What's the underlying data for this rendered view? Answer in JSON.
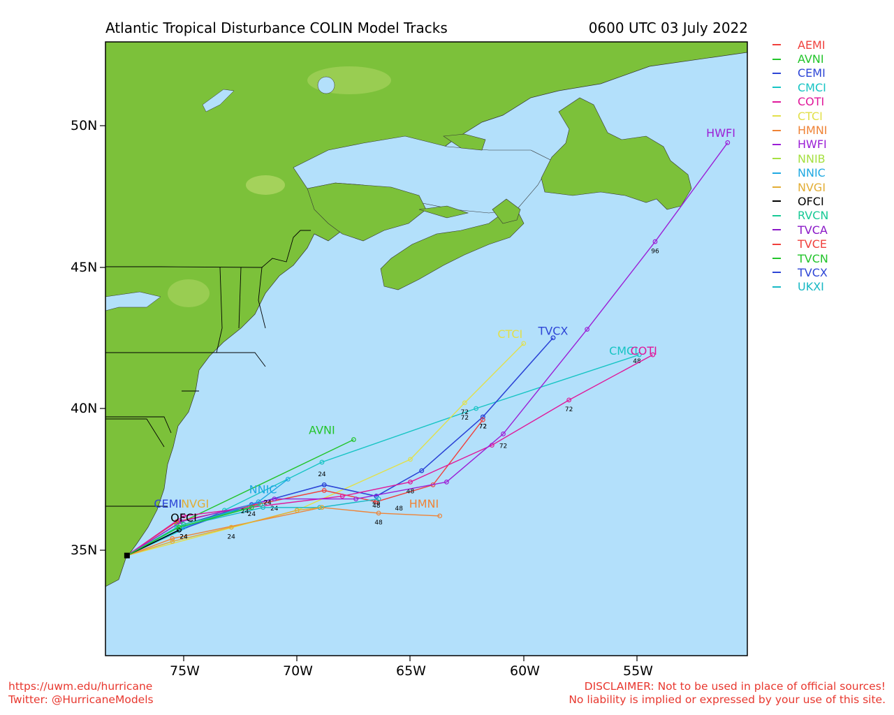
{
  "header": {
    "title": "Atlantic Tropical Disturbance COLIN Model Tracks",
    "timestamp": "0600 UTC 03 July 2022"
  },
  "axes": {
    "lon_labels": [
      "75W",
      "70W",
      "65W",
      "60W",
      "55W"
    ],
    "lat_labels": [
      "50N",
      "45N",
      "40N",
      "35N"
    ]
  },
  "colors": {
    "ocean": "#b3e0fb",
    "land": "#7cc13a",
    "land_light": "#b5d96a",
    "border": "#000000"
  },
  "legend": [
    {
      "name": "AEMI",
      "color": "#f0403c"
    },
    {
      "name": "AVNI",
      "color": "#22c42a"
    },
    {
      "name": "CEMI",
      "color": "#2d45d6"
    },
    {
      "name": "CMCI",
      "color": "#17c4c4"
    },
    {
      "name": "COTI",
      "color": "#e0189a"
    },
    {
      "name": "CTCI",
      "color": "#e2e04a"
    },
    {
      "name": "HMNI",
      "color": "#ef8336"
    },
    {
      "name": "HWFI",
      "color": "#9b1fd6"
    },
    {
      "name": "NNIB",
      "color": "#a6e041"
    },
    {
      "name": "NNIC",
      "color": "#1fa9e2"
    },
    {
      "name": "NVGI",
      "color": "#e2ad34"
    },
    {
      "name": "OFCI",
      "color": "#000000"
    },
    {
      "name": "RVCN",
      "color": "#17c995"
    },
    {
      "name": "TVCA",
      "color": "#8a17c7"
    },
    {
      "name": "TVCE",
      "color": "#f0403c"
    },
    {
      "name": "TVCN",
      "color": "#22c42a"
    },
    {
      "name": "TVCX",
      "color": "#2d45d6"
    },
    {
      "name": "UKXI",
      "color": "#17b8c4"
    }
  ],
  "start": {
    "lon": -77.5,
    "lat": 34.8
  },
  "tracks": [
    {
      "name": "AVNI",
      "color": "#22c42a",
      "points": [
        [
          -77.5,
          34.8
        ],
        [
          -75.3,
          35.9
        ],
        [
          -67.5,
          38.9
        ]
      ],
      "end_label": "AVNI",
      "label_at": [
        -68.9,
        39.1
      ],
      "hours": []
    },
    {
      "name": "CMCI",
      "color": "#17c4c4",
      "points": [
        [
          -77.5,
          34.8
        ],
        [
          -73.2,
          36.4
        ],
        [
          -68.9,
          38.1
        ],
        [
          -62.1,
          40.0
        ],
        [
          -54.9,
          41.9
        ]
      ],
      "end_label": "CMCI",
      "label_at": [
        -55.6,
        41.9
      ],
      "hours": [
        [
          "24",
          -68.9,
          37.6
        ],
        [
          "72",
          -62.6,
          39.6
        ],
        [
          "48",
          -55.0,
          41.6
        ]
      ]
    },
    {
      "name": "CTCI",
      "color": "#e2e04a",
      "points": [
        [
          -77.5,
          34.8
        ],
        [
          -70.0,
          36.4
        ],
        [
          -65.0,
          38.2
        ],
        [
          -62.6,
          40.2
        ],
        [
          -60.0,
          42.3
        ]
      ],
      "end_label": "CTCI",
      "label_at": [
        -60.6,
        42.5
      ],
      "hours": [
        [
          "72",
          -62.6,
          39.8
        ]
      ]
    },
    {
      "name": "HMNI",
      "color": "#ef8336",
      "points": [
        [
          -77.5,
          34.8
        ],
        [
          -75.5,
          35.4
        ],
        [
          -68.9,
          36.5
        ],
        [
          -66.4,
          36.3
        ],
        [
          -63.7,
          36.2
        ]
      ],
      "end_label": "HMNI",
      "label_at": [
        -64.4,
        36.5
      ],
      "hours": [
        [
          "48",
          -66.4,
          35.9
        ]
      ]
    },
    {
      "name": "CEMI",
      "color": "#2d45d6",
      "points": [
        [
          -77.5,
          34.8
        ],
        [
          -75.2,
          35.7
        ],
        [
          -72.0,
          36.6
        ],
        [
          -68.8,
          37.3
        ],
        [
          -66.5,
          36.9
        ],
        [
          -64.5,
          37.8
        ],
        [
          -61.8,
          39.7
        ],
        [
          -58.7,
          42.5
        ]
      ],
      "end_label": "CEMI",
      "label_at": [
        -75.7,
        36.5
      ],
      "hours": [
        [
          "24",
          -75.0,
          35.4
        ],
        [
          "48",
          -66.5,
          36.6
        ],
        [
          "72",
          -61.8,
          39.3
        ]
      ]
    },
    {
      "name": "TVCX",
      "color": "#2d45d6",
      "points": [
        [
          -77.5,
          34.8
        ],
        [
          -75.0,
          35.9
        ],
        [
          -72.0,
          36.6
        ],
        [
          -68.8,
          37.3
        ],
        [
          -66.5,
          36.9
        ],
        [
          -64.5,
          37.8
        ],
        [
          -61.8,
          39.7
        ],
        [
          -58.7,
          42.5
        ]
      ],
      "end_label": "TVCX",
      "label_at": [
        -58.7,
        42.6
      ],
      "hours": [
        [
          "72",
          -61.8,
          39.3
        ]
      ]
    },
    {
      "name": "AEMI",
      "color": "#f0403c",
      "points": [
        [
          -77.5,
          34.8
        ],
        [
          -75.3,
          36.0
        ],
        [
          -71.8,
          36.6
        ],
        [
          -68.8,
          37.1
        ],
        [
          -66.5,
          36.7
        ],
        [
          -64.0,
          37.3
        ],
        [
          -61.8,
          39.6
        ]
      ],
      "end_label": "",
      "label_at": null,
      "hours": [
        [
          "48",
          -66.5,
          36.5
        ]
      ]
    },
    {
      "name": "COTI",
      "color": "#e0189a",
      "points": [
        [
          -77.5,
          34.8
        ],
        [
          -75.0,
          36.2
        ],
        [
          -72.1,
          36.5
        ],
        [
          -68.0,
          36.9
        ],
        [
          -65.0,
          37.4
        ],
        [
          -61.4,
          38.7
        ],
        [
          -58.0,
          40.3
        ],
        [
          -54.3,
          41.9
        ]
      ],
      "end_label": "COTI",
      "label_at": [
        -54.7,
        41.9
      ],
      "hours": [
        [
          "48",
          -65.0,
          37.0
        ],
        [
          "72",
          -58.0,
          39.9
        ]
      ]
    },
    {
      "name": "HWFI",
      "color": "#9b1fd6",
      "points": [
        [
          -77.5,
          34.8
        ],
        [
          -75.1,
          36.0
        ],
        [
          -71.0,
          36.8
        ],
        [
          -67.4,
          36.8
        ],
        [
          -63.4,
          37.4
        ],
        [
          -60.9,
          39.1
        ],
        [
          -57.2,
          42.8
        ],
        [
          -54.2,
          45.9
        ],
        [
          -51.0,
          49.4
        ]
      ],
      "end_label": "HWFI",
      "label_at": [
        -51.3,
        49.6
      ],
      "hours": [
        [
          "24",
          -71.0,
          36.4
        ],
        [
          "48",
          -65.5,
          36.4
        ],
        [
          "72",
          -60.9,
          38.6
        ],
        [
          "96",
          -54.2,
          45.5
        ]
      ]
    },
    {
      "name": "UKXI",
      "color": "#17b8c4",
      "points": [
        [
          -77.5,
          34.8
        ],
        [
          -75.3,
          35.8
        ],
        [
          -71.5,
          36.5
        ],
        [
          -69.0,
          36.5
        ],
        [
          -66.4,
          36.8
        ]
      ],
      "end_label": "",
      "label_at": null,
      "hours": [
        [
          "24",
          -72.0,
          36.2
        ]
      ]
    },
    {
      "name": "NNIC",
      "color": "#1fa9e2",
      "points": [
        [
          -77.5,
          34.8
        ],
        [
          -75.0,
          35.8
        ],
        [
          -71.7,
          36.7
        ],
        [
          -70.4,
          37.5
        ]
      ],
      "end_label": "NNIC",
      "label_at": [
        -71.5,
        37.0
      ],
      "hours": [
        [
          "24",
          -71.3,
          36.6
        ]
      ]
    },
    {
      "name": "NVGI",
      "color": "#e2ad34",
      "points": [
        [
          -77.5,
          34.8
        ],
        [
          -75.5,
          35.3
        ],
        [
          -72.9,
          35.8
        ],
        [
          -70.0,
          36.4
        ],
        [
          -68.9,
          36.5
        ]
      ],
      "end_label": "NVGI",
      "label_at": [
        -74.5,
        36.5
      ],
      "hours": [
        [
          "24",
          -72.9,
          35.4
        ]
      ]
    },
    {
      "name": "OFCI",
      "color": "#000000",
      "points": [
        [
          -77.5,
          34.8
        ],
        [
          -75.2,
          35.7
        ]
      ],
      "end_label": "OFCI",
      "label_at": [
        -75.0,
        36.0
      ],
      "hours": [
        [
          "24",
          -75.0,
          35.4
        ]
      ]
    },
    {
      "name": "RVCN",
      "color": "#17c995",
      "points": [
        [
          -77.5,
          34.8
        ],
        [
          -75.0,
          35.9
        ],
        [
          -71.6,
          36.6
        ]
      ],
      "end_label": "",
      "label_at": null,
      "hours": [
        [
          "24",
          -72.3,
          36.3
        ]
      ]
    },
    {
      "name": "TVCN",
      "color": "#22c42a",
      "points": [
        [
          -77.5,
          34.8
        ],
        [
          -75.2,
          35.8
        ],
        [
          -72.0,
          36.5
        ]
      ],
      "end_label": "",
      "label_at": null,
      "hours": []
    }
  ],
  "footer": {
    "url": "https://uwm.edu/hurricane",
    "twitter": "Twitter: @HurricaneModels",
    "disclaimer_1": "DISCLAIMER: Not to be used in place of official sources!",
    "disclaimer_2": "No liability is implied or expressed by your use of this site."
  }
}
